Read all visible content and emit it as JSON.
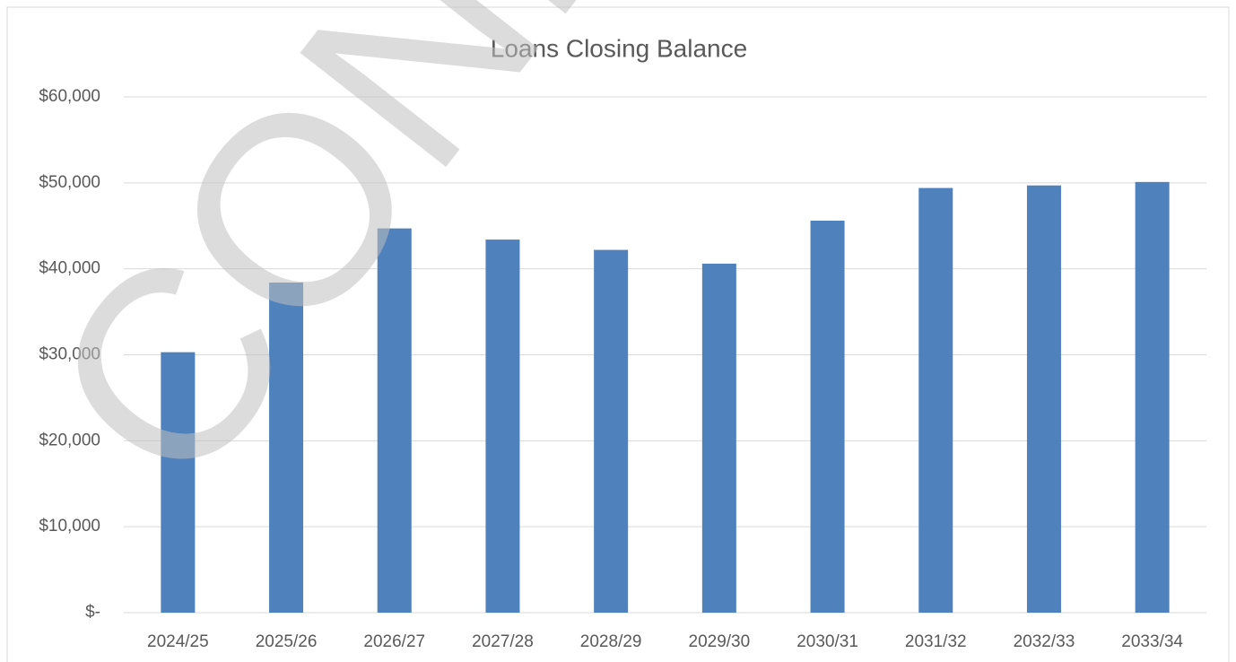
{
  "chart_data": {
    "type": "bar",
    "title": "Loans Closing Balance",
    "watermark": "CONFIDENTIAL",
    "categories": [
      "2024/25",
      "2025/26",
      "2026/27",
      "2027/28",
      "2028/29",
      "2029/30",
      "2030/31",
      "2031/32",
      "2032/33",
      "2033/34"
    ],
    "values": [
      30300,
      38400,
      44700,
      43400,
      42200,
      40600,
      45600,
      49400,
      49700,
      50100
    ],
    "color": "#4f81bd",
    "ylim": [
      0,
      60000
    ],
    "yticks": [
      {
        "value": 0,
        "label": "$-"
      },
      {
        "value": 10000,
        "label": "$10,000"
      },
      {
        "value": 20000,
        "label": "$20,000"
      },
      {
        "value": 30000,
        "label": "$30,000"
      },
      {
        "value": 40000,
        "label": "$40,000"
      },
      {
        "value": 50000,
        "label": "$50,000"
      },
      {
        "value": 60000,
        "label": "$60,000"
      }
    ],
    "grid": true
  }
}
